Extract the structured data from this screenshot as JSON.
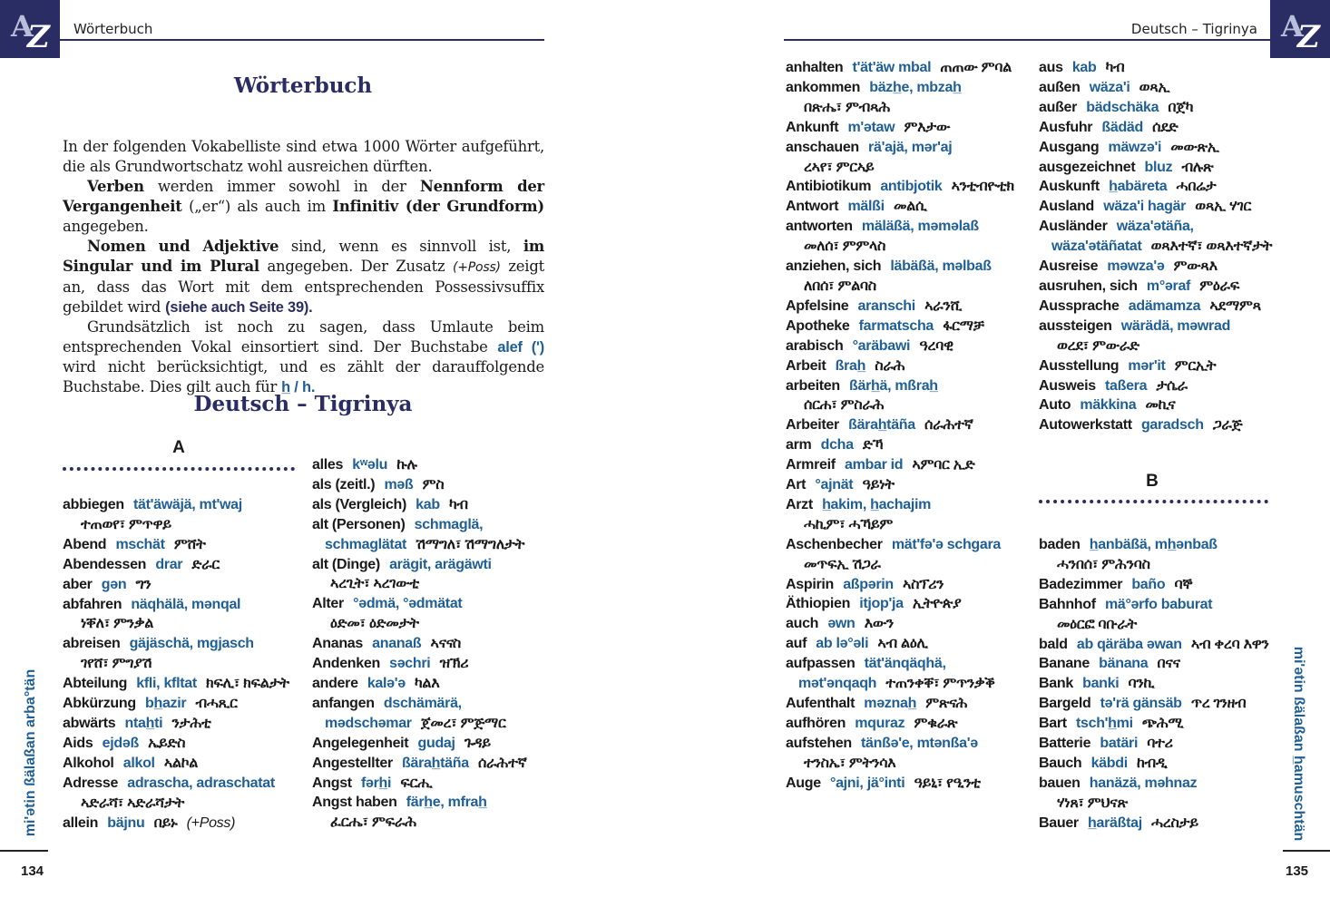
{
  "left_page": {
    "running_head": "Wörterbuch",
    "logo_text": "AZ",
    "title": "Wörterbuch",
    "intro": [
      [
        {
          "t": "In der folgenden Vokabelliste sind etwa 1000 Wörter aufgeführt, die als Grundwortschatz wohl ausreichen dürften.",
          "s": ""
        }
      ],
      [
        {
          "t": "Verben",
          "s": "b"
        },
        {
          "t": " werden immer sowohl in der ",
          "s": ""
        },
        {
          "t": "Nennform der Vergangenheit",
          "s": "b"
        },
        {
          "t": " („er“) als auch im ",
          "s": ""
        },
        {
          "t": "Infinitiv (der Grundform)",
          "s": "b"
        },
        {
          "t": " angegeben.",
          "s": ""
        }
      ],
      [
        {
          "t": "Nomen und Adjektive",
          "s": "b"
        },
        {
          "t": " sind, wenn es sinnvoll ist, ",
          "s": ""
        },
        {
          "t": "im Singular und im Plural",
          "s": "b"
        },
        {
          "t": " angegeben. Der Zusatz ",
          "s": ""
        },
        {
          "t": "(+Poss)",
          "s": "i"
        },
        {
          "t": " zeigt an, dass das Wort mit dem entsprechenden Possessivsuffix gebildet wird ",
          "s": ""
        },
        {
          "t": "(siehe auch Seite 39).",
          "s": "link"
        }
      ],
      [
        {
          "t": "Grundsätzlich ist noch zu sagen, dass Umlaute beim entsprechenden Vokal einsortiert sind. Der Buchstabe ",
          "s": ""
        },
        {
          "t": "alef (')",
          "s": "link2"
        },
        {
          "t": " wird nicht berücksichtigt, und es zählt der darauffolgende Buchstabe. Dies gilt auch für ",
          "s": ""
        },
        {
          "t": "h̲ / h.",
          "s": "link2"
        }
      ]
    ],
    "section_title": "Deutsch – Tigrinya",
    "letter_a": "A",
    "col1": [
      {
        "de": "abbiegen",
        "tr": "tät'äwäjä, mt'waj",
        "ti": "ተጠወየ፣ ምጥዋይ"
      },
      {
        "de": "Abend",
        "tr": "mschät",
        "ti": "ምሸት"
      },
      {
        "de": "Abendessen",
        "tr": "drar",
        "ti": "ድራር"
      },
      {
        "de": "aber",
        "tr": "gən",
        "ti": "ግን"
      },
      {
        "de": "abfahren",
        "tr": "näqhälä, mənqal",
        "ti": "ነቐለ፣ ምንቃል"
      },
      {
        "de": "abreisen",
        "tr": "gäjäschä, mgjasch",
        "ti": "ገየሸ፣ ምግያሽ"
      },
      {
        "de": "Abteilung",
        "tr": "kfli, kfltat",
        "ti": "ክፍሊ፣ ክፍልታት"
      },
      {
        "de": "Abkürzung",
        "tr": "bh̲azir",
        "ti": "ብሓጺር"
      },
      {
        "de": "abwärts",
        "tr": "ntah̲ti",
        "ti": "ንታሕቲ"
      },
      {
        "de": "Aids",
        "tr": "ejdəß",
        "ti": "ኤይድስ"
      },
      {
        "de": "Alkohol",
        "tr": "alkol",
        "ti": "ኣልኮል"
      },
      {
        "de": "Adresse",
        "tr": "adrascha, adraschatat",
        "ti": "ኣድራሻ፣ ኣድራሻታት"
      },
      {
        "de": "allein",
        "tr": "bäjnu",
        "ti": "በይኑ",
        "note": "(+Poss)"
      }
    ],
    "col2": [
      {
        "de": "alles",
        "tr": "kʷəlu",
        "ti": "ኩሉ"
      },
      {
        "de": "als (zeitl.)",
        "tr": "məß",
        "ti": "ምስ"
      },
      {
        "de": "als (Vergleich)",
        "tr": "kab",
        "ti": "ካብ"
      },
      {
        "de": "alt (Personen)",
        "tr": "schmaglä, schmaglätat",
        "ti": "ሽማግለ፣ ሽማግለታት"
      },
      {
        "de": "alt (Dinge)",
        "tr": "arägit, arägäwti",
        "ti": "ኣረጊት፣ ኣረገውቲ"
      },
      {
        "de": "Alter",
        "tr": "°ədmä, °ədmätat",
        "ti": "ዕድመ፣ ዕድመታት"
      },
      {
        "de": "Ananas",
        "tr": "ananaß",
        "ti": "ኣናናስ"
      },
      {
        "de": "Andenken",
        "tr": "səchri",
        "ti": "ዝኽሪ"
      },
      {
        "de": "andere",
        "tr": "kalə'ə",
        "ti": "ካልእ"
      },
      {
        "de": "anfangen",
        "tr": "dschämärä, mədschəmar",
        "ti": "ጀመረ፣ ምጅማር"
      },
      {
        "de": "Angelegenheit",
        "tr": "gudaj",
        "ti": "ጉዳይ"
      },
      {
        "de": "Angestellter",
        "tr": "ßärah̲täña",
        "ti": "ሰራሕተኛ"
      },
      {
        "de": "Angst",
        "tr": "fərh̲i",
        "ti": "ፍርሒ"
      },
      {
        "de": "Angst haben",
        "tr": "färh̲e, mfrah̲",
        "ti": "ፈርሔ፣ ምፍራሕ"
      }
    ],
    "side_text": "mi'ətin ßälaßan arba°tän",
    "page_number": "134"
  },
  "right_page": {
    "running_head": "Deutsch – Tigrinya",
    "logo_text": "AZ",
    "col3": [
      {
        "de": "anhalten",
        "tr": "t'ät'äw mbal",
        "ti": "ጠጠው ምባል"
      },
      {
        "de": "ankommen",
        "tr": "bäzh̲e, mbzah̲",
        "ti": "በጽሔ፣ ምብጻሕ"
      },
      {
        "de": "Ankunft",
        "tr": "m'ətaw",
        "ti": "ምእታው"
      },
      {
        "de": "anschauen",
        "tr": "rä'ajä, mər'aj",
        "ti": "ረኣየ፣ ምርኣይ"
      },
      {
        "de": "Antibiotikum",
        "tr": "antibjotik",
        "ti": "ኣንቲብዮቲክ"
      },
      {
        "de": "Antwort",
        "tr": "mälßi",
        "ti": "መልሲ"
      },
      {
        "de": "antworten",
        "tr": "mäläßä, məməlaß",
        "ti": "መለሰ፣ ምምላስ"
      },
      {
        "de": "anziehen, sich",
        "tr": "läbäßä, məlbaß",
        "ti": "ለበሰ፣ ምልባስ"
      },
      {
        "de": "Apfelsine",
        "tr": "aranschi",
        "ti": "ኣራንሺ"
      },
      {
        "de": "Apotheke",
        "tr": "farmatscha",
        "ti": "ፋርማቻ"
      },
      {
        "de": "arabisch",
        "tr": "°aräbawi",
        "ti": "ዓረባዊ"
      },
      {
        "de": "Arbeit",
        "tr": "ßrah̲",
        "ti": "ስራሕ"
      },
      {
        "de": "arbeiten",
        "tr": "ßärh̲ä, mßrah̲",
        "ti": "ሰርሐ፣ ምስራሕ"
      },
      {
        "de": "Arbeiter",
        "tr": "ßärah̲täña",
        "ti": "ሰራሕተኛ"
      },
      {
        "de": "arm",
        "tr": "dcha",
        "ti": "ድኻ"
      },
      {
        "de": "Armreif",
        "tr": "ambar id",
        "ti": "ኣምባር ኢድ"
      },
      {
        "de": "Art",
        "tr": "°ajnät",
        "ti": "ዓይነት"
      },
      {
        "de": "Arzt",
        "tr": "h̲akim, h̲achajim",
        "ti": "ሓኪም፣ ሓኻይም"
      },
      {
        "de": "Aschenbecher",
        "tr": "mät'fə'ə schgara",
        "ti": "መጥፍኢ ሽጋራ"
      },
      {
        "de": "Aspirin",
        "tr": "aßpərin",
        "ti": "ኣስፕሪን"
      },
      {
        "de": "Äthiopien",
        "tr": "itjop'ja",
        "ti": "ኢትዮጵያ"
      },
      {
        "de": "auch",
        "tr": "əwn",
        "ti": "እውን"
      },
      {
        "de": "auf",
        "tr": "ab lə°əli",
        "ti": "ኣብ ልዕሊ"
      },
      {
        "de": "aufpassen",
        "tr": "tät'änqäqhä, mət'ənqaqh",
        "ti": "ተጠንቀቐ፣ ምጥንቃቕ"
      },
      {
        "de": "Aufenthalt",
        "tr": "məznah̲",
        "ti": "ምጽናሕ"
      },
      {
        "de": "aufhören",
        "tr": "mquraz",
        "ti": "ምቁራጽ"
      },
      {
        "de": "aufstehen",
        "tr": "tänßə'e, mtənßa'ə",
        "ti": "ተንስኤ፣ ምትንሳእ"
      },
      {
        "de": "Auge",
        "tr": "°ajni, jä°inti",
        "ti": "ዓይኒ፣ የዒንቲ"
      }
    ],
    "col4": [
      {
        "de": "aus",
        "tr": "kab",
        "ti": "ካብ"
      },
      {
        "de": "außen",
        "tr": "wäza'i",
        "ti": "ወጻኢ"
      },
      {
        "de": "außer",
        "tr": "bädschäka",
        "ti": "በጀካ"
      },
      {
        "de": "Ausfuhr",
        "tr": "ßädäd",
        "ti": "ሰደድ"
      },
      {
        "de": "Ausgang",
        "tr": "mäwzə'i",
        "ti": "መውጽኢ"
      },
      {
        "de": "ausgezeichnet",
        "tr": "bluz",
        "ti": "ብሉጽ"
      },
      {
        "de": "Auskunft",
        "tr": "h̲abäreta",
        "ti": "ሓበሬታ"
      },
      {
        "de": "Ausland",
        "tr": "wäza'i hagär",
        "ti": "ወጻኢ ሃገር"
      },
      {
        "de": "Ausländer",
        "tr": "wäza'ətäña, wäza'ətäñatat",
        "ti": "ወጻእተኛ፣ ወጻእተኛታት"
      },
      {
        "de": "Ausreise",
        "tr": "məwza'ə",
        "ti": "ምውጻእ"
      },
      {
        "de": "ausruhen, sich",
        "tr": "m°əraf",
        "ti": "ምዕራፍ"
      },
      {
        "de": "Aussprache",
        "tr": "adämamza",
        "ti": "ኣደማምጻ"
      },
      {
        "de": "aussteigen",
        "tr": "wärädä, məwrad",
        "ti": "ወረደ፣ ምውራድ"
      },
      {
        "de": "Ausstellung",
        "tr": "mər'it",
        "ti": "ምርኢት"
      },
      {
        "de": "Ausweis",
        "tr": "taßera",
        "ti": "ታሴራ"
      },
      {
        "de": "Auto",
        "tr": "mäkkina",
        "ti": "መኪና"
      },
      {
        "de": "Autowerkstatt",
        "tr": "garadsch",
        "ti": "ጋራጅ"
      }
    ],
    "letter_b": "B",
    "col4b": [
      {
        "de": "baden",
        "tr": "h̲anbäßä, mh̲ənbaß",
        "ti": "ሓንበሰ፣ ምሕንባስ"
      },
      {
        "de": "Badezimmer",
        "tr": "baño",
        "ti": "ባኞ"
      },
      {
        "de": "Bahnhof",
        "tr": "mä°ərfo baburat",
        "ti": "መዕርፎ ባቡራት"
      },
      {
        "de": "bald",
        "tr": "ab qäräba əwan",
        "ti": "ኣብ ቀረባ እዋን"
      },
      {
        "de": "Banane",
        "tr": "bänana",
        "ti": "በናና"
      },
      {
        "de": "Bank",
        "tr": "banki",
        "ti": "ባንኪ"
      },
      {
        "de": "Bargeld",
        "tr": "tə'rä gänsäb",
        "ti": "ጥረ ገንዘብ"
      },
      {
        "de": "Bart",
        "tr": "tsch'h̲mi",
        "ti": "ጭሕሚ"
      },
      {
        "de": "Batterie",
        "tr": "batäri",
        "ti": "ባተሪ"
      },
      {
        "de": "Bauch",
        "tr": "käbdi",
        "ti": "ከብዲ"
      },
      {
        "de": "bauen",
        "tr": "hanäzä, məhnaz",
        "ti": "ሃነጸ፣ ምህናጽ"
      },
      {
        "de": "Bauer",
        "tr": "h̲aräßtaj",
        "ti": "ሓረስታይ"
      }
    ],
    "side_text": "mi'ətin ßälaßan h̲amuschtän",
    "page_number": "135"
  },
  "colors": {
    "brand": "#2a2d63",
    "transliteration": "#1f5f96",
    "text": "#1a1a1a"
  }
}
